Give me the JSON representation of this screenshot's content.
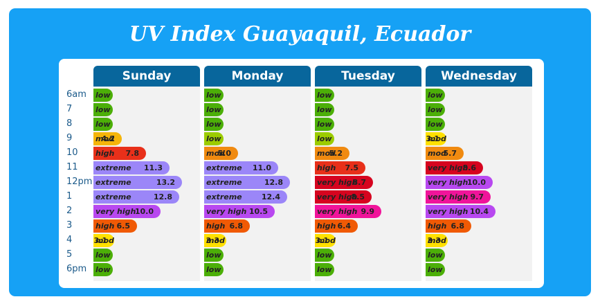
{
  "title": "UV Index Guayaquil, Ecuador",
  "hours": [
    "6am",
    "7",
    "8",
    "9",
    "10",
    "11",
    "12pm",
    "1",
    "2",
    "3",
    "4",
    "5",
    "6pm"
  ],
  "level_colors": {
    "low": "#4caf08",
    "low_green_yellow": "#9ccc00",
    "mod_yellow": "#ffe000",
    "mod_gold": "#f5b50a",
    "mod_orange": "#f08a10",
    "high_orange": "#f05a05",
    "high_red": "#e8301a",
    "very_high_red": "#d6041f",
    "very_high_magenta": "#f0149a",
    "very_high_purple": "#b848f0",
    "extreme": "#9b86f8"
  },
  "days": [
    {
      "name": "Sunday",
      "rows": [
        {
          "level": "low",
          "value": "",
          "uv": 0.5,
          "color": "#4caf08"
        },
        {
          "level": "low",
          "value": "",
          "uv": 0.5,
          "color": "#4caf08"
        },
        {
          "level": "low",
          "value": "",
          "uv": 1.2,
          "color": "#4caf08"
        },
        {
          "level": "mod",
          "value": "4.2",
          "uv": 4.2,
          "color": "#f5b50a"
        },
        {
          "level": "high",
          "value": "7.8",
          "uv": 7.8,
          "color": "#e8301a"
        },
        {
          "level": "extreme",
          "value": "11.3",
          "uv": 11.3,
          "color": "#9b86f8"
        },
        {
          "level": "extreme",
          "value": "13.2",
          "uv": 13.2,
          "color": "#9b86f8"
        },
        {
          "level": "extreme",
          "value": "12.8",
          "uv": 12.8,
          "color": "#9b86f8"
        },
        {
          "level": "very high",
          "value": "10.0",
          "uv": 10.0,
          "color": "#b848f0"
        },
        {
          "level": "high",
          "value": "6.5",
          "uv": 6.5,
          "color": "#f05a05"
        },
        {
          "level": "mod",
          "value": "3.1",
          "uv": 3.1,
          "color": "#ffe000"
        },
        {
          "level": "low",
          "value": "",
          "uv": 0.5,
          "color": "#4caf08"
        },
        {
          "level": "low",
          "value": "",
          "uv": 0.5,
          "color": "#4caf08"
        }
      ]
    },
    {
      "name": "Monday",
      "rows": [
        {
          "level": "low",
          "value": "",
          "uv": 0.5,
          "color": "#4caf08"
        },
        {
          "level": "low",
          "value": "",
          "uv": 0.5,
          "color": "#4caf08"
        },
        {
          "level": "low",
          "value": "",
          "uv": 1.2,
          "color": "#4caf08"
        },
        {
          "level": "low",
          "value": "",
          "uv": 2.2,
          "color": "#9ccc00"
        },
        {
          "level": "mod",
          "value": "5.0",
          "uv": 5.0,
          "color": "#f08a10"
        },
        {
          "level": "extreme",
          "value": "11.0",
          "uv": 11.0,
          "color": "#9b86f8"
        },
        {
          "level": "extreme",
          "value": "12.8",
          "uv": 12.8,
          "color": "#9b86f8"
        },
        {
          "level": "extreme",
          "value": "12.4",
          "uv": 12.4,
          "color": "#9b86f8"
        },
        {
          "level": "very high",
          "value": "10.5",
          "uv": 10.5,
          "color": "#b848f0"
        },
        {
          "level": "high",
          "value": "6.8",
          "uv": 6.8,
          "color": "#f05a05"
        },
        {
          "level": "mod",
          "value": "3.3",
          "uv": 3.3,
          "color": "#ffe000"
        },
        {
          "level": "low",
          "value": "",
          "uv": 0.5,
          "color": "#4caf08"
        },
        {
          "level": "low",
          "value": "",
          "uv": 0.5,
          "color": "#4caf08"
        }
      ]
    },
    {
      "name": "Tuesday",
      "rows": [
        {
          "level": "low",
          "value": "",
          "uv": 0.5,
          "color": "#4caf08"
        },
        {
          "level": "low",
          "value": "",
          "uv": 0.5,
          "color": "#4caf08"
        },
        {
          "level": "low",
          "value": "",
          "uv": 1.2,
          "color": "#4caf08"
        },
        {
          "level": "low",
          "value": "",
          "uv": 2.2,
          "color": "#9ccc00"
        },
        {
          "level": "mod",
          "value": "5.2",
          "uv": 5.2,
          "color": "#f08a10"
        },
        {
          "level": "high",
          "value": "7.5",
          "uv": 7.5,
          "color": "#e8301a"
        },
        {
          "level": "very high",
          "value": "8.7",
          "uv": 8.7,
          "color": "#d6041f"
        },
        {
          "level": "very high",
          "value": "8.5",
          "uv": 8.5,
          "color": "#d6041f"
        },
        {
          "level": "very high",
          "value": "9.9",
          "uv": 9.9,
          "color": "#f0149a"
        },
        {
          "level": "high",
          "value": "6.4",
          "uv": 6.4,
          "color": "#f05a05"
        },
        {
          "level": "mod",
          "value": "3.1",
          "uv": 3.1,
          "color": "#ffe000"
        },
        {
          "level": "low",
          "value": "",
          "uv": 0.5,
          "color": "#4caf08"
        },
        {
          "level": "low",
          "value": "",
          "uv": 0.5,
          "color": "#4caf08"
        }
      ]
    },
    {
      "name": "Wednesday",
      "rows": [
        {
          "level": "low",
          "value": "",
          "uv": 0.5,
          "color": "#4caf08"
        },
        {
          "level": "low",
          "value": "",
          "uv": 0.5,
          "color": "#4caf08"
        },
        {
          "level": "low",
          "value": "",
          "uv": 1.2,
          "color": "#4caf08"
        },
        {
          "level": "mod",
          "value": "3.1",
          "uv": 3.1,
          "color": "#ffe000"
        },
        {
          "level": "mod",
          "value": "5.7",
          "uv": 5.7,
          "color": "#f08a10"
        },
        {
          "level": "very high",
          "value": "8.6",
          "uv": 8.6,
          "color": "#d6041f"
        },
        {
          "level": "very high",
          "value": "10.0",
          "uv": 10.0,
          "color": "#b848f0"
        },
        {
          "level": "very high",
          "value": "9.7",
          "uv": 9.7,
          "color": "#f0149a"
        },
        {
          "level": "very high",
          "value": "10.4",
          "uv": 10.4,
          "color": "#b848f0"
        },
        {
          "level": "high",
          "value": "6.8",
          "uv": 6.8,
          "color": "#f05a05"
        },
        {
          "level": "mod",
          "value": "3.3",
          "uv": 3.3,
          "color": "#ffe000"
        },
        {
          "level": "low",
          "value": "",
          "uv": 1.2,
          "color": "#4caf08"
        },
        {
          "level": "low",
          "value": "",
          "uv": 0.5,
          "color": "#4caf08"
        }
      ]
    }
  ]
}
